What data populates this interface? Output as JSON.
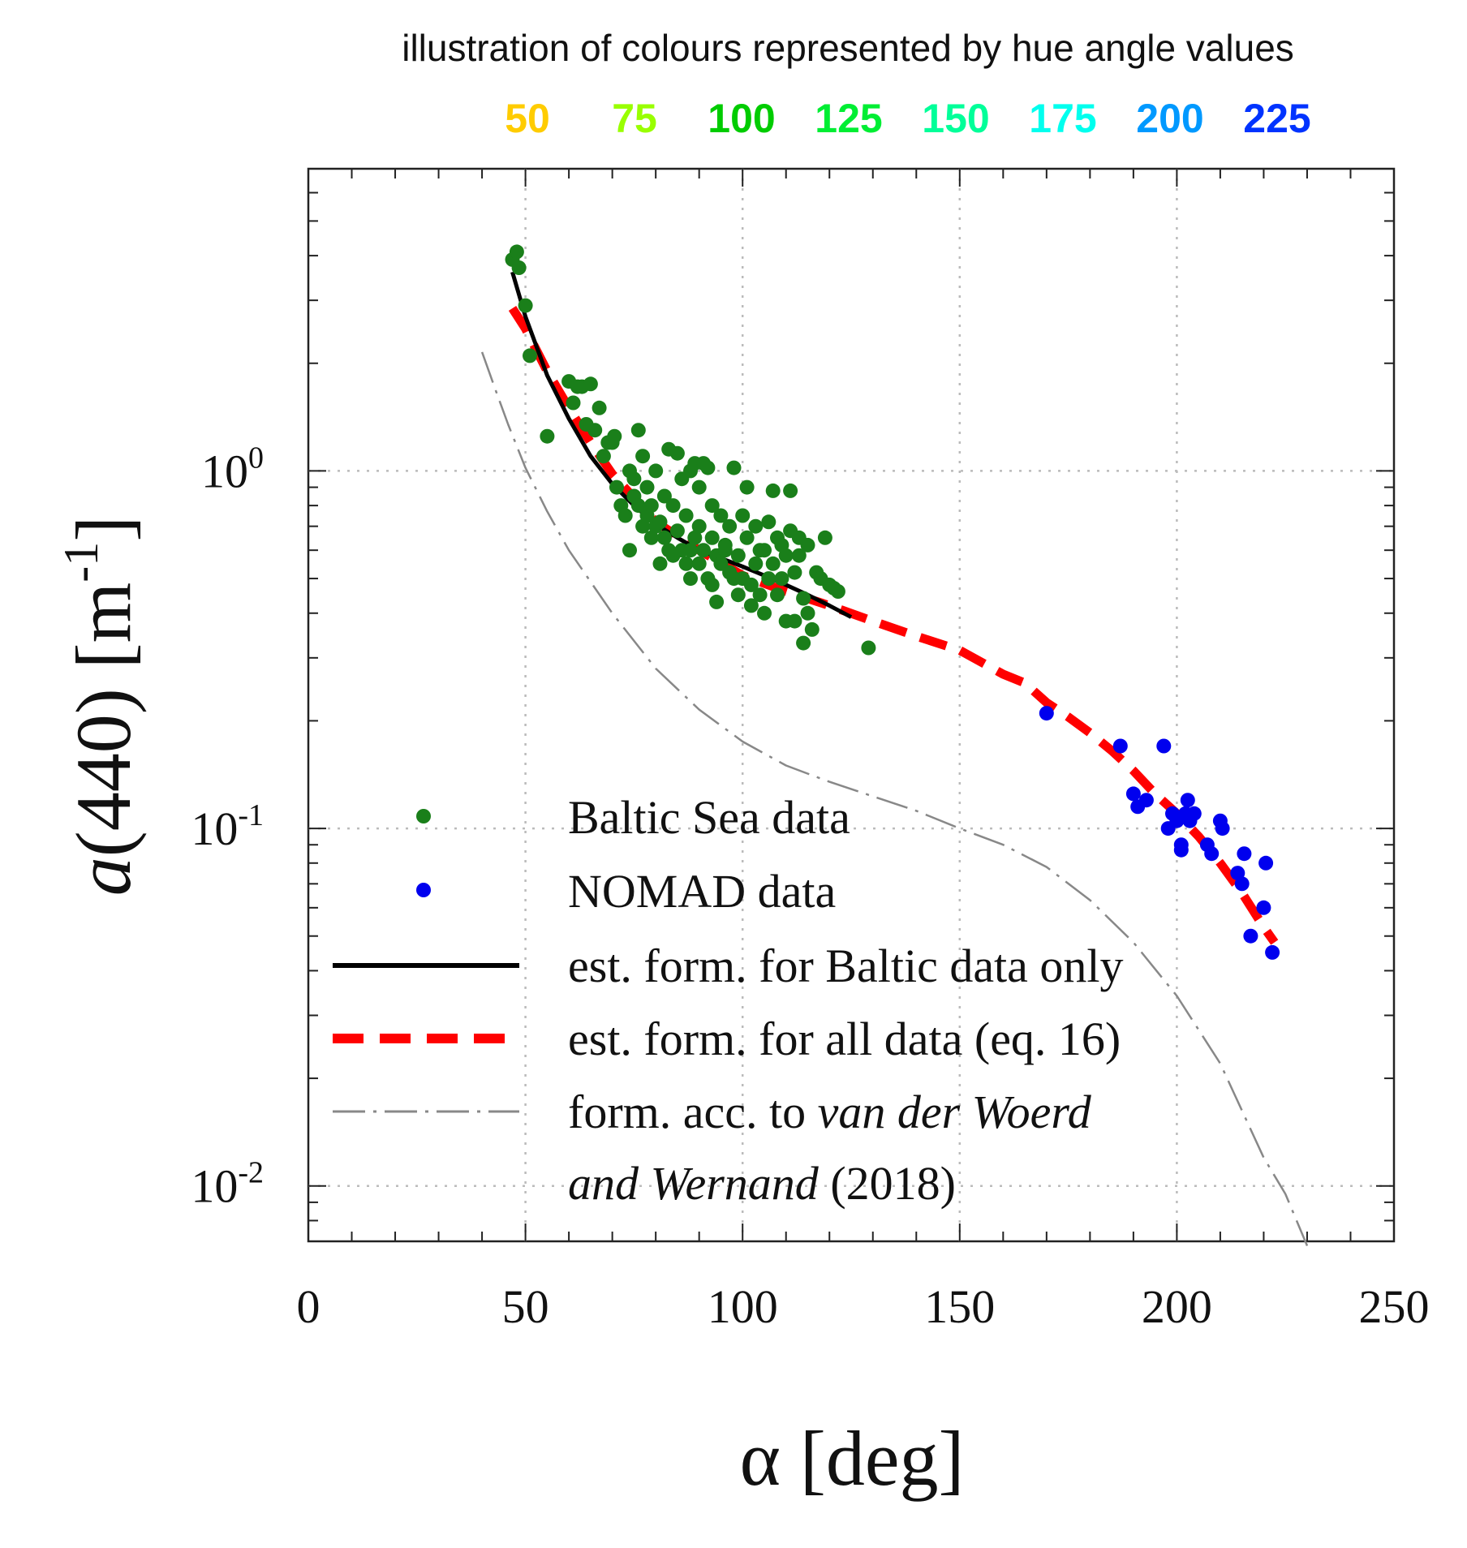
{
  "chart_data": {
    "type": "scatter",
    "hue_illustration": {
      "title": "illustration of colours represented by hue angle values",
      "labels": [
        {
          "text": "50",
          "color": "#ffcc00"
        },
        {
          "text": "75",
          "color": "#99ff00"
        },
        {
          "text": "100",
          "color": "#00cc00"
        },
        {
          "text": "125",
          "color": "#00ee33"
        },
        {
          "text": "150",
          "color": "#00ff99"
        },
        {
          "text": "175",
          "color": "#00ffee"
        },
        {
          "text": "200",
          "color": "#0099ff"
        },
        {
          "text": "225",
          "color": "#0033ff"
        }
      ]
    },
    "xlabel": "α [deg]",
    "ylabel_main": "a",
    "ylabel_rest": "(440) [m",
    "ylabel_sup": "-1",
    "ylabel_end": "]",
    "xlim": [
      0,
      250
    ],
    "ylim": [
      0.007,
      7
    ],
    "xscale": "linear",
    "yscale": "log",
    "x_ticks": [
      0,
      50,
      100,
      150,
      200,
      250
    ],
    "x_tick_labels": [
      "0",
      "50",
      "100",
      "150",
      "200",
      "250"
    ],
    "y_ticks": [
      {
        "value": 1,
        "base": "10",
        "exp": "0"
      },
      {
        "value": 0.1,
        "base": "10",
        "exp": "-1"
      },
      {
        "value": 0.01,
        "base": "10",
        "exp": "-2"
      }
    ],
    "grid": true,
    "series": [
      {
        "name": "Baltic Sea data",
        "kind": "scatter",
        "color": "#1a7f1a",
        "points": [
          [
            47,
            3.9
          ],
          [
            48,
            4.1
          ],
          [
            48.5,
            3.7
          ],
          [
            50,
            2.9
          ],
          [
            51,
            2.1
          ],
          [
            55,
            1.25
          ],
          [
            60,
            1.78
          ],
          [
            61,
            1.55
          ],
          [
            62,
            1.72
          ],
          [
            63,
            1.72
          ],
          [
            64,
            1.35
          ],
          [
            65,
            1.75
          ],
          [
            66,
            1.3
          ],
          [
            67,
            1.5
          ],
          [
            68,
            1.1
          ],
          [
            69,
            1.2
          ],
          [
            70,
            1.2
          ],
          [
            70.5,
            1.25
          ],
          [
            71,
            0.9
          ],
          [
            72,
            0.8
          ],
          [
            73,
            0.75
          ],
          [
            74,
            0.6
          ],
          [
            74,
            1.0
          ],
          [
            75,
            0.95
          ],
          [
            75,
            0.85
          ],
          [
            76,
            1.3
          ],
          [
            76,
            0.8
          ],
          [
            77,
            0.7
          ],
          [
            77,
            1.1
          ],
          [
            78,
            0.75
          ],
          [
            78,
            0.9
          ],
          [
            79,
            0.65
          ],
          [
            79,
            0.8
          ],
          [
            80,
            0.7
          ],
          [
            80,
            1.0
          ],
          [
            81,
            0.72
          ],
          [
            81,
            0.55
          ],
          [
            82,
            0.65
          ],
          [
            82,
            0.85
          ],
          [
            83,
            0.6
          ],
          [
            83,
            1.15
          ],
          [
            84,
            0.58
          ],
          [
            84,
            0.8
          ],
          [
            85,
            1.12
          ],
          [
            85,
            0.68
          ],
          [
            86,
            0.6
          ],
          [
            86,
            0.95
          ],
          [
            87,
            0.55
          ],
          [
            87,
            0.75
          ],
          [
            88,
            0.6
          ],
          [
            88,
            1.0
          ],
          [
            88,
            0.5
          ],
          [
            89,
            0.65
          ],
          [
            89,
            1.05
          ],
          [
            90,
            0.7
          ],
          [
            90,
            0.55
          ],
          [
            90,
            0.9
          ],
          [
            91,
            0.6
          ],
          [
            91,
            1.05
          ],
          [
            92,
            1.02
          ],
          [
            92,
            0.5
          ],
          [
            93,
            0.48
          ],
          [
            93,
            0.65
          ],
          [
            93,
            0.8
          ],
          [
            94,
            0.58
          ],
          [
            94,
            0.43
          ],
          [
            95,
            0.75
          ],
          [
            95,
            0.55
          ],
          [
            96,
            0.6
          ],
          [
            96,
            0.62
          ],
          [
            97,
            0.52
          ],
          [
            97,
            0.7
          ],
          [
            98,
            1.02
          ],
          [
            98,
            0.5
          ],
          [
            99,
            0.45
          ],
          [
            99,
            0.58
          ],
          [
            100,
            0.75
          ],
          [
            100,
            0.5
          ],
          [
            101,
            0.65
          ],
          [
            101,
            0.9
          ],
          [
            102,
            0.48
          ],
          [
            102,
            0.42
          ],
          [
            103,
            0.7
          ],
          [
            103,
            0.55
          ],
          [
            104,
            0.45
          ],
          [
            104,
            0.6
          ],
          [
            105,
            0.4
          ],
          [
            105,
            0.6
          ],
          [
            106,
            0.5
          ],
          [
            106,
            0.72
          ],
          [
            107,
            0.55
          ],
          [
            107,
            0.88
          ],
          [
            108,
            0.45
          ],
          [
            108,
            0.65
          ],
          [
            109,
            0.5
          ],
          [
            109,
            0.62
          ],
          [
            110,
            0.58
          ],
          [
            110,
            0.38
          ],
          [
            111,
            0.88
          ],
          [
            111,
            0.68
          ],
          [
            112,
            0.52
          ],
          [
            112,
            0.38
          ],
          [
            113,
            0.65
          ],
          [
            113,
            0.58
          ],
          [
            114,
            0.44
          ],
          [
            114,
            0.33
          ],
          [
            115,
            0.62
          ],
          [
            115,
            0.4
          ],
          [
            116,
            0.36
          ],
          [
            117,
            0.52
          ],
          [
            118,
            0.5
          ],
          [
            119,
            0.65
          ],
          [
            120,
            0.48
          ],
          [
            121,
            0.47
          ],
          [
            122,
            0.46
          ],
          [
            129,
            0.32
          ]
        ]
      },
      {
        "name": "NOMAD data",
        "kind": "scatter",
        "color": "#0000ee",
        "points": [
          [
            170,
            0.21
          ],
          [
            187,
            0.17
          ],
          [
            190,
            0.125
          ],
          [
            191,
            0.115
          ],
          [
            193,
            0.12
          ],
          [
            197,
            0.17
          ],
          [
            198,
            0.1
          ],
          [
            199,
            0.11
          ],
          [
            200,
            0.105
          ],
          [
            201,
            0.09
          ],
          [
            202,
            0.11
          ],
          [
            202.5,
            0.12
          ],
          [
            203,
            0.105
          ],
          [
            204,
            0.11
          ],
          [
            207,
            0.09
          ],
          [
            208,
            0.085
          ],
          [
            210,
            0.105
          ],
          [
            210.5,
            0.1
          ],
          [
            214,
            0.075
          ],
          [
            215,
            0.07
          ],
          [
            215.5,
            0.085
          ],
          [
            217,
            0.05
          ],
          [
            220,
            0.06
          ],
          [
            220.5,
            0.08
          ],
          [
            222,
            0.045
          ],
          [
            201,
            0.087
          ]
        ]
      },
      {
        "name": "est. form. for Baltic data only",
        "kind": "line",
        "style": "solid",
        "color": "#000000",
        "points": [
          [
            47,
            3.6
          ],
          [
            50,
            2.7
          ],
          [
            55,
            1.85
          ],
          [
            60,
            1.4
          ],
          [
            65,
            1.1
          ],
          [
            70,
            0.92
          ],
          [
            75,
            0.8
          ],
          [
            80,
            0.71
          ],
          [
            85,
            0.65
          ],
          [
            90,
            0.6
          ],
          [
            95,
            0.57
          ],
          [
            100,
            0.54
          ],
          [
            105,
            0.51
          ],
          [
            110,
            0.48
          ],
          [
            115,
            0.45
          ],
          [
            120,
            0.42
          ],
          [
            125,
            0.39
          ]
        ]
      },
      {
        "name": "est. form. for all data (eq. 16)",
        "kind": "line",
        "style": "dashed",
        "color": "#ff0000",
        "points": [
          [
            47,
            2.85
          ],
          [
            50,
            2.5
          ],
          [
            55,
            1.9
          ],
          [
            60,
            1.5
          ],
          [
            65,
            1.2
          ],
          [
            70,
            0.98
          ],
          [
            80,
            0.72
          ],
          [
            90,
            0.6
          ],
          [
            100,
            0.51
          ],
          [
            110,
            0.46
          ],
          [
            120,
            0.42
          ],
          [
            130,
            0.38
          ],
          [
            140,
            0.345
          ],
          [
            150,
            0.315
          ],
          [
            160,
            0.27
          ],
          [
            165,
            0.255
          ],
          [
            170,
            0.225
          ],
          [
            175,
            0.205
          ],
          [
            180,
            0.185
          ],
          [
            185,
            0.165
          ],
          [
            190,
            0.145
          ],
          [
            195,
            0.125
          ],
          [
            200,
            0.11
          ],
          [
            205,
            0.095
          ],
          [
            210,
            0.08
          ],
          [
            215,
            0.066
          ],
          [
            220,
            0.053
          ],
          [
            222.5,
            0.048
          ]
        ]
      },
      {
        "name": "form. acc. to van der Woerd and Wernand (2018)",
        "kind": "line",
        "style": "dashdot",
        "color": "#888888",
        "points": [
          [
            40,
            2.15
          ],
          [
            43,
            1.7
          ],
          [
            46,
            1.35
          ],
          [
            50,
            1.02
          ],
          [
            55,
            0.77
          ],
          [
            60,
            0.6
          ],
          [
            70,
            0.4
          ],
          [
            80,
            0.28
          ],
          [
            90,
            0.215
          ],
          [
            100,
            0.175
          ],
          [
            110,
            0.15
          ],
          [
            120,
            0.135
          ],
          [
            130,
            0.123
          ],
          [
            140,
            0.112
          ],
          [
            150,
            0.1
          ],
          [
            160,
            0.09
          ],
          [
            170,
            0.078
          ],
          [
            180,
            0.063
          ],
          [
            190,
            0.048
          ],
          [
            200,
            0.034
          ],
          [
            210,
            0.022
          ],
          [
            220,
            0.012
          ],
          [
            225,
            0.0095
          ],
          [
            230,
            0.0068
          ]
        ]
      }
    ],
    "legend": {
      "position": "bottom-left",
      "entries": [
        {
          "label": "Baltic Sea data"
        },
        {
          "label": "NOMAD data"
        },
        {
          "label": "est. form. for Baltic data only"
        },
        {
          "label": "est. form. for all data (eq. 16)"
        },
        {
          "label_plain": "form. acc. to ",
          "label_italic": "van der Woerd",
          "label_italic2": "and Wernand",
          "label_plain2": " (2018)"
        }
      ]
    }
  }
}
